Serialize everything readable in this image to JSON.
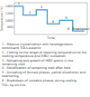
{
  "chart_data": {
    "type": "line",
    "ylabel": "Temperature (°C)",
    "xlabel": "Time",
    "x": [
      0,
      12,
      12,
      30,
      30,
      45,
      45,
      62,
      62,
      80,
      80,
      96
    ],
    "values": [
      1400,
      1400,
      1150,
      1150,
      1300,
      1300,
      900,
      900,
      1000,
      1000,
      700,
      700
    ],
    "xlim": [
      0,
      100
    ],
    "ylim": [
      600,
      1500
    ],
    "yticks": [
      800,
      1000,
      1200,
      1400
    ],
    "color": "#3a9bd6",
    "tick_labels": "y",
    "annotations": [
      {
        "text": "1",
        "x": 6,
        "y": 1400
      },
      {
        "text": "2",
        "x": 21,
        "y": 1150
      },
      {
        "text": "3",
        "x": 37,
        "y": 1300
      },
      {
        "text": "4",
        "x": 53,
        "y": 900
      },
      {
        "text": "5",
        "x": 71,
        "y": 1000
      },
      {
        "text": "6 - Breakdown",
        "x": 88,
        "y": 700
      }
    ]
  },
  "notes": [
    "1 - Massive crystallization with heterogeneous constituent TOLs-eutectic",
    "2 - Cooling to the target at lowering temperature to the melting temperature and HfB2 nucleation",
    "3 - Reheating and growth of HfB2 grains in the remaining melt",
    "4 - Solidification of remaining melt after hold",
    "5 - Annealing of formed phases, partial dissolution and coarsening",
    "6 - Breakdown of unstable phases during cooling",
    "TOL: tip-on-line"
  ]
}
